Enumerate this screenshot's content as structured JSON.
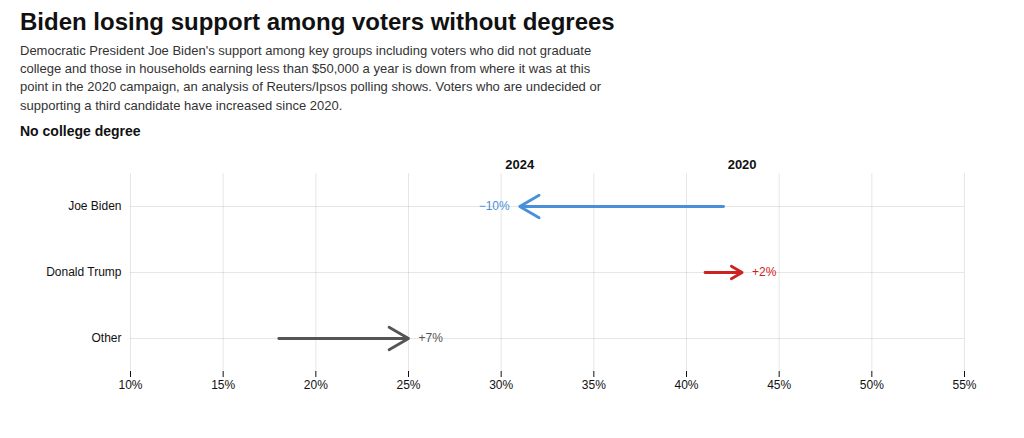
{
  "chart_data": {
    "type": "arrow",
    "title": "Biden losing support among voters without degrees",
    "subtitle": "Democratic President Joe Biden's support among key groups including voters who did not graduate\ncollege and those in households earning less than $50,000 a year is down from where it was at this\npoint in the 2020 campaign, an analysis of Reuters/Ipsos polling shows. Voters who are undecided or\nsupporting a third candidate have increased since 2020.",
    "categories": [
      "Joe Biden",
      "Donald Trump",
      "Other"
    ],
    "series": [
      {
        "name": "2020",
        "values": [
          42,
          41,
          18
        ]
      },
      {
        "name": "2024",
        "values": [
          31,
          43,
          25
        ]
      }
    ],
    "colors": [
      "#4a90d9",
      "#cc2222",
      "#555555"
    ],
    "annotations": [
      {
        "text": "No college degree"
      },
      {
        "text": "2024",
        "x": 31
      },
      {
        "text": "2020",
        "x": 43
      },
      {
        "text": "−10%",
        "category": "Joe Biden"
      },
      {
        "text": "+2%",
        "category": "Donald Trump"
      },
      {
        "text": "+7%",
        "category": "Other"
      }
    ],
    "xlim": [
      10,
      55
    ],
    "xticks": [
      {
        "value": 10,
        "label": "10%"
      },
      {
        "value": 15,
        "label": "15%"
      },
      {
        "value": 20,
        "label": "20%"
      },
      {
        "value": 25,
        "label": "25%"
      },
      {
        "value": 30,
        "label": "30%"
      },
      {
        "value": 35,
        "label": "35%"
      },
      {
        "value": 40,
        "label": "40%"
      },
      {
        "value": 45,
        "label": "45%"
      },
      {
        "value": 50,
        "label": "50%"
      },
      {
        "value": 55,
        "label": "55%"
      }
    ],
    "grid": true
  }
}
